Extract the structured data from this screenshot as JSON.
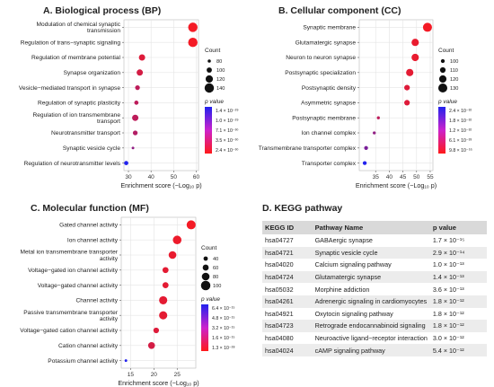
{
  "panels": {
    "bp": {
      "title": "A. Biological process (BP)"
    },
    "cc": {
      "title": "B. Cellular component (CC)"
    },
    "mf": {
      "title": "C. Molecular function (MF)"
    },
    "kegg": {
      "title": "D. KEGG pathway"
    }
  },
  "chart_data": [
    {
      "id": "bp",
      "type": "scatter",
      "title": "A. Biological process (BP)",
      "xlabel": "Enrichment score (−Log₁₀ p)",
      "xlim": [
        28,
        61
      ],
      "xticks": [
        "30",
        "40",
        "50",
        "60"
      ],
      "xtick_values": [
        30,
        40,
        50,
        60
      ],
      "categories": [
        "Modulation of chemical synaptic transmission",
        "Regulation of trans−synaptic signaling",
        "Regulation of membrane potential",
        "Synapse organization",
        "Vesicle−mediated transport in synapse",
        "Regulation of synaptic plasticity",
        "Regulation of ion transmembrane transport",
        "Neurotransmitter transport",
        "Synaptic vesicle cycle",
        "Regulation of neurotransmitter levels"
      ],
      "label_lines": [
        [
          "Modulation of chemical synaptic",
          "transmission"
        ],
        [
          "Regulation of trans−synaptic signaling"
        ],
        [
          "Regulation of membrane potential"
        ],
        [
          "Synapse organization"
        ],
        [
          "Vesicle−mediated transport in synapse"
        ],
        [
          "Regulation of synaptic plasticity"
        ],
        [
          "Regulation of ion transmembrane",
          "transport"
        ],
        [
          "Neurotransmitter transport"
        ],
        [
          "Synaptic vesicle cycle"
        ],
        [
          "Regulation of neurotransmitter levels"
        ]
      ],
      "enrichment": [
        58.5,
        58.5,
        36,
        35,
        34,
        33.5,
        33,
        33,
        32,
        29
      ],
      "count": [
        140,
        140,
        110,
        110,
        95,
        90,
        110,
        95,
        75,
        90
      ],
      "p_value_color": [
        0.05,
        0.05,
        0.15,
        0.2,
        0.3,
        0.3,
        0.3,
        0.35,
        0.5,
        1.0
      ],
      "size_legend": {
        "title": "Count",
        "values": [
          80,
          100,
          120,
          140
        ],
        "min": 70,
        "max": 145
      },
      "color_legend": {
        "title": "p value",
        "labels": [
          "1.4 × 10⁻²⁹",
          "1.0 × 10⁻²⁹",
          "7.1 × 10⁻³⁰",
          "3.5 × 10⁻³⁰",
          "2.4 × 10⁻³⁰"
        ]
      }
    },
    {
      "id": "cc",
      "type": "scatter",
      "title": "B. Cellular component (CC)",
      "xlabel": "Enrichment score (−Log₁₀ p)",
      "xlim": [
        29,
        56
      ],
      "xticks": [
        "35",
        "40",
        "45",
        "50",
        "55"
      ],
      "xtick_values": [
        35,
        40,
        45,
        50,
        55
      ],
      "categories": [
        "Synaptic membrane",
        "Glutamatergic synapse",
        "Neuron to neuron synapse",
        "Postsynaptic specialization",
        "Postsynaptic density",
        "Asymmetric synapse",
        "Postsynaptic membrane",
        "Ion channel complex",
        "Transmembrane transporter complex",
        "Transporter complex"
      ],
      "label_lines": [
        [
          "Synaptic membrane"
        ],
        [
          "Glutamatergic synapse"
        ],
        [
          "Neuron to neuron synapse"
        ],
        [
          "Postsynaptic specialization"
        ],
        [
          "Postsynaptic density"
        ],
        [
          "Asymmetric synapse"
        ],
        [
          "Postsynaptic membrane"
        ],
        [
          "Ion channel complex"
        ],
        [
          "Transmembrane transporter complex"
        ],
        [
          "Transporter complex"
        ]
      ],
      "enrichment": [
        54,
        49.5,
        49.5,
        47.5,
        46.5,
        46.5,
        36,
        34.5,
        31.5,
        31
      ],
      "count": [
        130,
        120,
        120,
        120,
        110,
        110,
        95,
        95,
        100,
        100
      ],
      "p_value_color": [
        0.05,
        0.1,
        0.1,
        0.12,
        0.15,
        0.15,
        0.3,
        0.5,
        0.6,
        1.0
      ],
      "size_legend": {
        "title": "Count",
        "values": [
          100,
          110,
          120,
          130
        ],
        "min": 90,
        "max": 135
      },
      "color_legend": {
        "title": "p value",
        "labels": [
          "2.4 × 10⁻³²",
          "1.8 × 10⁻³²",
          "1.2 × 10⁻³²",
          "6.1 × 10⁻³³",
          "9.8 × 10⁻⁵⁵"
        ]
      }
    },
    {
      "id": "mf",
      "type": "scatter",
      "title": "C. Molecular function (MF)",
      "xlabel": "Enrichment score (−Log₁₀ p)",
      "xlim": [
        13,
        29
      ],
      "xticks": [
        "15",
        "20",
        "25"
      ],
      "xtick_values": [
        15,
        20,
        25
      ],
      "categories": [
        "Gated channel activity",
        "Ion channel activity",
        "Metal ion transmembrane transporter activity",
        "Voltage−gated ion channel activity",
        "Voltage−gated channel activity",
        "Channel activity",
        "Passive transmembrane transporter activity",
        "Voltage−gated cation channel activity",
        "Cation channel activity",
        "Potassium channel activity"
      ],
      "label_lines": [
        [
          "Gated channel activity"
        ],
        [
          "Ion channel activity"
        ],
        [
          "Metal ion transmembrane transporter",
          "activity"
        ],
        [
          "Voltage−gated ion channel activity"
        ],
        [
          "Voltage−gated channel activity"
        ],
        [
          "Channel activity"
        ],
        [
          "Passive transmembrane transporter",
          "activity"
        ],
        [
          "Voltage−gated cation channel activity"
        ],
        [
          "Cation channel activity"
        ],
        [
          "Potassium channel activity"
        ]
      ],
      "enrichment": [
        28,
        25,
        24,
        22.5,
        22.5,
        22,
        22,
        20.5,
        19.5,
        14
      ],
      "count": [
        95,
        90,
        80,
        60,
        60,
        85,
        85,
        55,
        70,
        20
      ],
      "p_value_color": [
        0.05,
        0.08,
        0.1,
        0.12,
        0.12,
        0.12,
        0.12,
        0.15,
        0.2,
        1.0
      ],
      "size_legend": {
        "title": "Count",
        "values": [
          40,
          60,
          80,
          100
        ],
        "min": 15,
        "max": 105
      },
      "color_legend": {
        "title": "p value",
        "labels": [
          "6.4 × 10⁻¹⁵",
          "4.8 × 10⁻¹⁵",
          "3.2 × 10⁻¹⁵",
          "1.6 × 10⁻¹⁵",
          "1.3 × 10⁻²⁸"
        ]
      }
    }
  ],
  "kegg": {
    "headers": [
      "KEGG ID",
      "Pathway Name",
      "p value"
    ],
    "rows": [
      {
        "id": "hsa04727",
        "name": "GABAergic synapse",
        "p": "1.7 × 10⁻¹⁵"
      },
      {
        "id": "hsa04721",
        "name": "Synaptic vesicle cycle",
        "p": "2.9 × 10⁻¹⁴"
      },
      {
        "id": "hsa04020",
        "name": "Calcium signaling pathway",
        "p": "1.0 × 10⁻¹³"
      },
      {
        "id": "hsa04724",
        "name": "Glutamatergic synapse",
        "p": "1.4 × 10⁻¹³"
      },
      {
        "id": "hsa05032",
        "name": "Morphine addiction",
        "p": "3.6 × 10⁻¹³"
      },
      {
        "id": "hsa04261",
        "name": "Adrenergic signaling in cardiomyocytes",
        "p": "1.8 × 10⁻¹²"
      },
      {
        "id": "hsa04921",
        "name": "Oxytocin signaling pathway",
        "p": "1.8 × 10⁻¹²"
      },
      {
        "id": "hsa04723",
        "name": "Retrograde endocannabinoid signaling",
        "p": "1.8 × 10⁻¹²"
      },
      {
        "id": "hsa04080",
        "name": "Neuroactive ligand−receptor interaction",
        "p": "3.0 × 10⁻¹²"
      },
      {
        "id": "hsa04024",
        "name": "cAMP signaling pathway",
        "p": "5.4 × 10⁻¹²"
      }
    ]
  },
  "colors": {
    "high": "#ff1a1a",
    "low": "#2222ee",
    "grid": "#e4e4e4"
  }
}
